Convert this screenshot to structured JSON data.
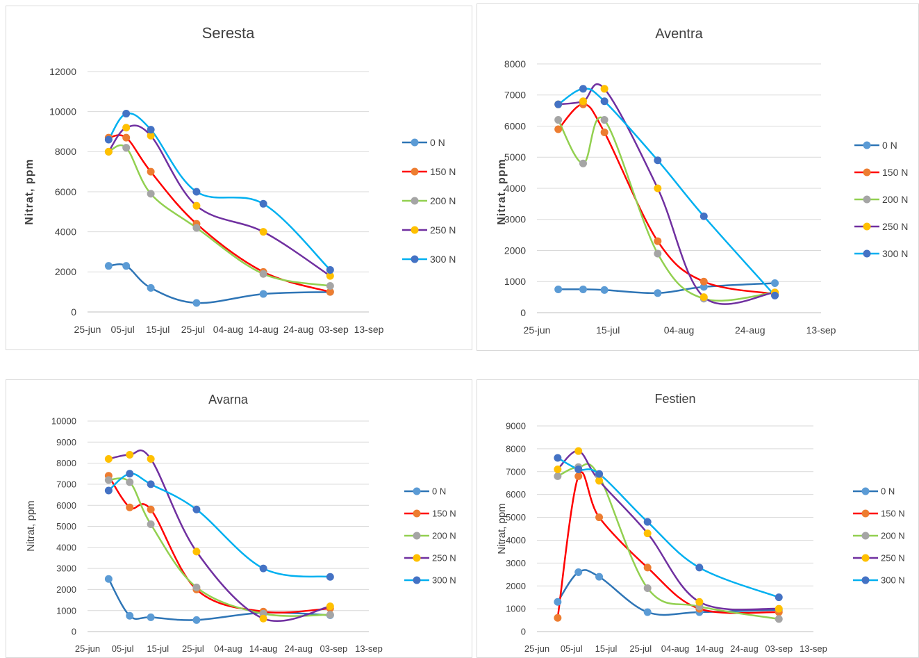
{
  "chart_data": [
    {
      "type": "line",
      "title": "Seresta",
      "ylabel": "Nitrat, ppm",
      "ylim": [
        0,
        12000
      ],
      "y_ticks": [
        0,
        2000,
        4000,
        6000,
        8000,
        10000,
        12000
      ],
      "x_ticks": [
        "25-jun",
        "05-jul",
        "15-jul",
        "25-jul",
        "04-aug",
        "14-aug",
        "24-aug",
        "03-sep",
        "13-sep"
      ],
      "x_dates": [
        "2023-06-25",
        "2023-07-05",
        "2023-07-15",
        "2023-07-25",
        "2023-08-04",
        "2023-08-14",
        "2023-08-24",
        "2023-09-03",
        "2023-09-13"
      ],
      "ylabel_bold": true,
      "legend_position": "right",
      "series": [
        {
          "name": "0 N",
          "color": "#2e75b6",
          "marker": "#5b9bd5",
          "x": [
            "2023-07-01",
            "2023-07-06",
            "2023-07-13",
            "2023-07-26",
            "2023-08-14",
            "2023-09-02"
          ],
          "y": [
            2300,
            2300,
            1200,
            450,
            900,
            1000
          ]
        },
        {
          "name": "150 N",
          "color": "#ff0000",
          "marker": "#ed7d31",
          "x": [
            "2023-07-01",
            "2023-07-06",
            "2023-07-13",
            "2023-07-26",
            "2023-08-14",
            "2023-09-02"
          ],
          "y": [
            8700,
            8700,
            7000,
            4400,
            2000,
            1000
          ]
        },
        {
          "name": "200 N",
          "color": "#92d050",
          "marker": "#a5a5a5",
          "x": [
            "2023-07-01",
            "2023-07-06",
            "2023-07-13",
            "2023-07-26",
            "2023-08-14",
            "2023-09-02"
          ],
          "y": [
            8000,
            8200,
            5900,
            4200,
            1900,
            1300
          ]
        },
        {
          "name": "250 N",
          "color": "#7030a0",
          "marker": "#ffc000",
          "x": [
            "2023-07-01",
            "2023-07-06",
            "2023-07-13",
            "2023-07-26",
            "2023-08-14",
            "2023-09-02"
          ],
          "y": [
            8000,
            9200,
            8800,
            5300,
            4000,
            1800
          ]
        },
        {
          "name": "300 N",
          "color": "#00b0f0",
          "marker": "#4472c4",
          "x": [
            "2023-07-01",
            "2023-07-06",
            "2023-07-13",
            "2023-07-26",
            "2023-08-14",
            "2023-09-02"
          ],
          "y": [
            8600,
            9900,
            9100,
            6000,
            5400,
            2100
          ]
        }
      ]
    },
    {
      "type": "line",
      "title": "Aventra",
      "ylabel": "Nitrat, ppm",
      "ylim": [
        0,
        8000
      ],
      "y_ticks": [
        0,
        1000,
        2000,
        3000,
        4000,
        5000,
        6000,
        7000,
        8000
      ],
      "x_ticks": [
        "25-jun",
        "15-jul",
        "04-aug",
        "24-aug",
        "13-sep"
      ],
      "x_dates": [
        "2023-06-25",
        "2023-07-15",
        "2023-08-04",
        "2023-08-24",
        "2023-09-13"
      ],
      "ylabel_bold": true,
      "legend_position": "right",
      "series": [
        {
          "name": "0 N",
          "color": "#2e75b6",
          "marker": "#5b9bd5",
          "x": [
            "2023-07-01",
            "2023-07-08",
            "2023-07-14",
            "2023-07-29",
            "2023-08-11",
            "2023-08-31"
          ],
          "y": [
            750,
            750,
            730,
            630,
            830,
            950
          ]
        },
        {
          "name": "150 N",
          "color": "#ff0000",
          "marker": "#ed7d31",
          "x": [
            "2023-07-01",
            "2023-07-08",
            "2023-07-14",
            "2023-07-29",
            "2023-08-11",
            "2023-08-31"
          ],
          "y": [
            5900,
            6700,
            5800,
            2300,
            1000,
            600
          ]
        },
        {
          "name": "200 N",
          "color": "#92d050",
          "marker": "#a5a5a5",
          "x": [
            "2023-07-01",
            "2023-07-08",
            "2023-07-14",
            "2023-07-29",
            "2023-08-11",
            "2023-08-31"
          ],
          "y": [
            6200,
            4800,
            6200,
            1900,
            450,
            650
          ]
        },
        {
          "name": "250 N",
          "color": "#7030a0",
          "marker": "#ffc000",
          "x": [
            "2023-07-01",
            "2023-07-08",
            "2023-07-14",
            "2023-07-29",
            "2023-08-11",
            "2023-08-31"
          ],
          "y": [
            6700,
            6800,
            7200,
            4000,
            500,
            650
          ]
        },
        {
          "name": "300 N",
          "color": "#00b0f0",
          "marker": "#4472c4",
          "x": [
            "2023-07-01",
            "2023-07-08",
            "2023-07-14",
            "2023-07-29",
            "2023-08-11",
            "2023-08-31"
          ],
          "y": [
            6700,
            7200,
            6800,
            4900,
            3100,
            550
          ]
        }
      ]
    },
    {
      "type": "line",
      "title": "Avarna",
      "ylabel": "Nitrat, ppm",
      "ylim": [
        0,
        10000
      ],
      "y_ticks": [
        0,
        1000,
        2000,
        3000,
        4000,
        5000,
        6000,
        7000,
        8000,
        9000,
        10000
      ],
      "x_ticks": [
        "25-jun",
        "05-jul",
        "15-jul",
        "25-jul",
        "04-aug",
        "14-aug",
        "24-aug",
        "03-sep",
        "13-sep"
      ],
      "x_dates": [
        "2023-06-25",
        "2023-07-05",
        "2023-07-15",
        "2023-07-25",
        "2023-08-04",
        "2023-08-14",
        "2023-08-24",
        "2023-09-03",
        "2023-09-13"
      ],
      "ylabel_bold": false,
      "legend_position": "right",
      "series": [
        {
          "name": "0 N",
          "color": "#2e75b6",
          "marker": "#5b9bd5",
          "x": [
            "2023-07-01",
            "2023-07-07",
            "2023-07-13",
            "2023-07-26",
            "2023-08-14",
            "2023-09-02"
          ],
          "y": [
            2500,
            750,
            680,
            550,
            900,
            780
          ]
        },
        {
          "name": "150 N",
          "color": "#ff0000",
          "marker": "#ed7d31",
          "x": [
            "2023-07-01",
            "2023-07-07",
            "2023-07-13",
            "2023-07-26",
            "2023-08-14",
            "2023-09-02"
          ],
          "y": [
            7400,
            5900,
            5800,
            2000,
            950,
            1100
          ]
        },
        {
          "name": "200 N",
          "color": "#92d050",
          "marker": "#a5a5a5",
          "x": [
            "2023-07-01",
            "2023-07-07",
            "2023-07-13",
            "2023-07-26",
            "2023-08-14",
            "2023-09-02"
          ],
          "y": [
            7200,
            7100,
            5100,
            2100,
            850,
            800
          ]
        },
        {
          "name": "250 N",
          "color": "#7030a0",
          "marker": "#ffc000",
          "x": [
            "2023-07-01",
            "2023-07-07",
            "2023-07-13",
            "2023-07-26",
            "2023-08-14",
            "2023-09-02"
          ],
          "y": [
            8200,
            8400,
            8200,
            3800,
            620,
            1200
          ]
        },
        {
          "name": "300 N",
          "color": "#00b0f0",
          "marker": "#4472c4",
          "x": [
            "2023-07-01",
            "2023-07-07",
            "2023-07-13",
            "2023-07-26",
            "2023-08-14",
            "2023-09-02"
          ],
          "y": [
            6700,
            7500,
            7000,
            5800,
            3000,
            2600
          ]
        }
      ]
    },
    {
      "type": "line",
      "title": "Festien",
      "ylabel": "Nitrat, ppm",
      "ylim": [
        0,
        9000
      ],
      "y_ticks": [
        0,
        1000,
        2000,
        3000,
        4000,
        5000,
        6000,
        7000,
        8000,
        9000
      ],
      "x_ticks": [
        "25-jun",
        "05-jul",
        "15-jul",
        "25-jul",
        "04-aug",
        "14-aug",
        "24-aug",
        "03-sep",
        "13-sep"
      ],
      "x_dates": [
        "2023-06-25",
        "2023-07-05",
        "2023-07-15",
        "2023-07-25",
        "2023-08-04",
        "2023-08-14",
        "2023-08-24",
        "2023-09-03",
        "2023-09-13"
      ],
      "ylabel_bold": false,
      "legend_position": "right",
      "series": [
        {
          "name": "0 N",
          "color": "#2e75b6",
          "marker": "#5b9bd5",
          "x": [
            "2023-07-01",
            "2023-07-07",
            "2023-07-13",
            "2023-07-27",
            "2023-08-11",
            "2023-09-03"
          ],
          "y": [
            1300,
            2600,
            2400,
            850,
            850,
            950
          ]
        },
        {
          "name": "150 N",
          "color": "#ff0000",
          "marker": "#ed7d31",
          "x": [
            "2023-07-01",
            "2023-07-07",
            "2023-07-13",
            "2023-07-27",
            "2023-08-11",
            "2023-09-03"
          ],
          "y": [
            600,
            6800,
            5000,
            2800,
            1000,
            850
          ]
        },
        {
          "name": "200 N",
          "color": "#92d050",
          "marker": "#a5a5a5",
          "x": [
            "2023-07-01",
            "2023-07-07",
            "2023-07-13",
            "2023-07-27",
            "2023-08-11",
            "2023-09-03"
          ],
          "y": [
            6800,
            7200,
            6800,
            1900,
            1100,
            550
          ]
        },
        {
          "name": "250 N",
          "color": "#7030a0",
          "marker": "#ffc000",
          "x": [
            "2023-07-01",
            "2023-07-07",
            "2023-07-13",
            "2023-07-27",
            "2023-08-11",
            "2023-09-03"
          ],
          "y": [
            7100,
            7900,
            6600,
            4300,
            1300,
            1000
          ]
        },
        {
          "name": "300 N",
          "color": "#00b0f0",
          "marker": "#4472c4",
          "x": [
            "2023-07-01",
            "2023-07-07",
            "2023-07-13",
            "2023-07-27",
            "2023-08-11",
            "2023-09-03"
          ],
          "y": [
            7600,
            7100,
            6900,
            4800,
            2800,
            1500
          ]
        }
      ]
    }
  ]
}
